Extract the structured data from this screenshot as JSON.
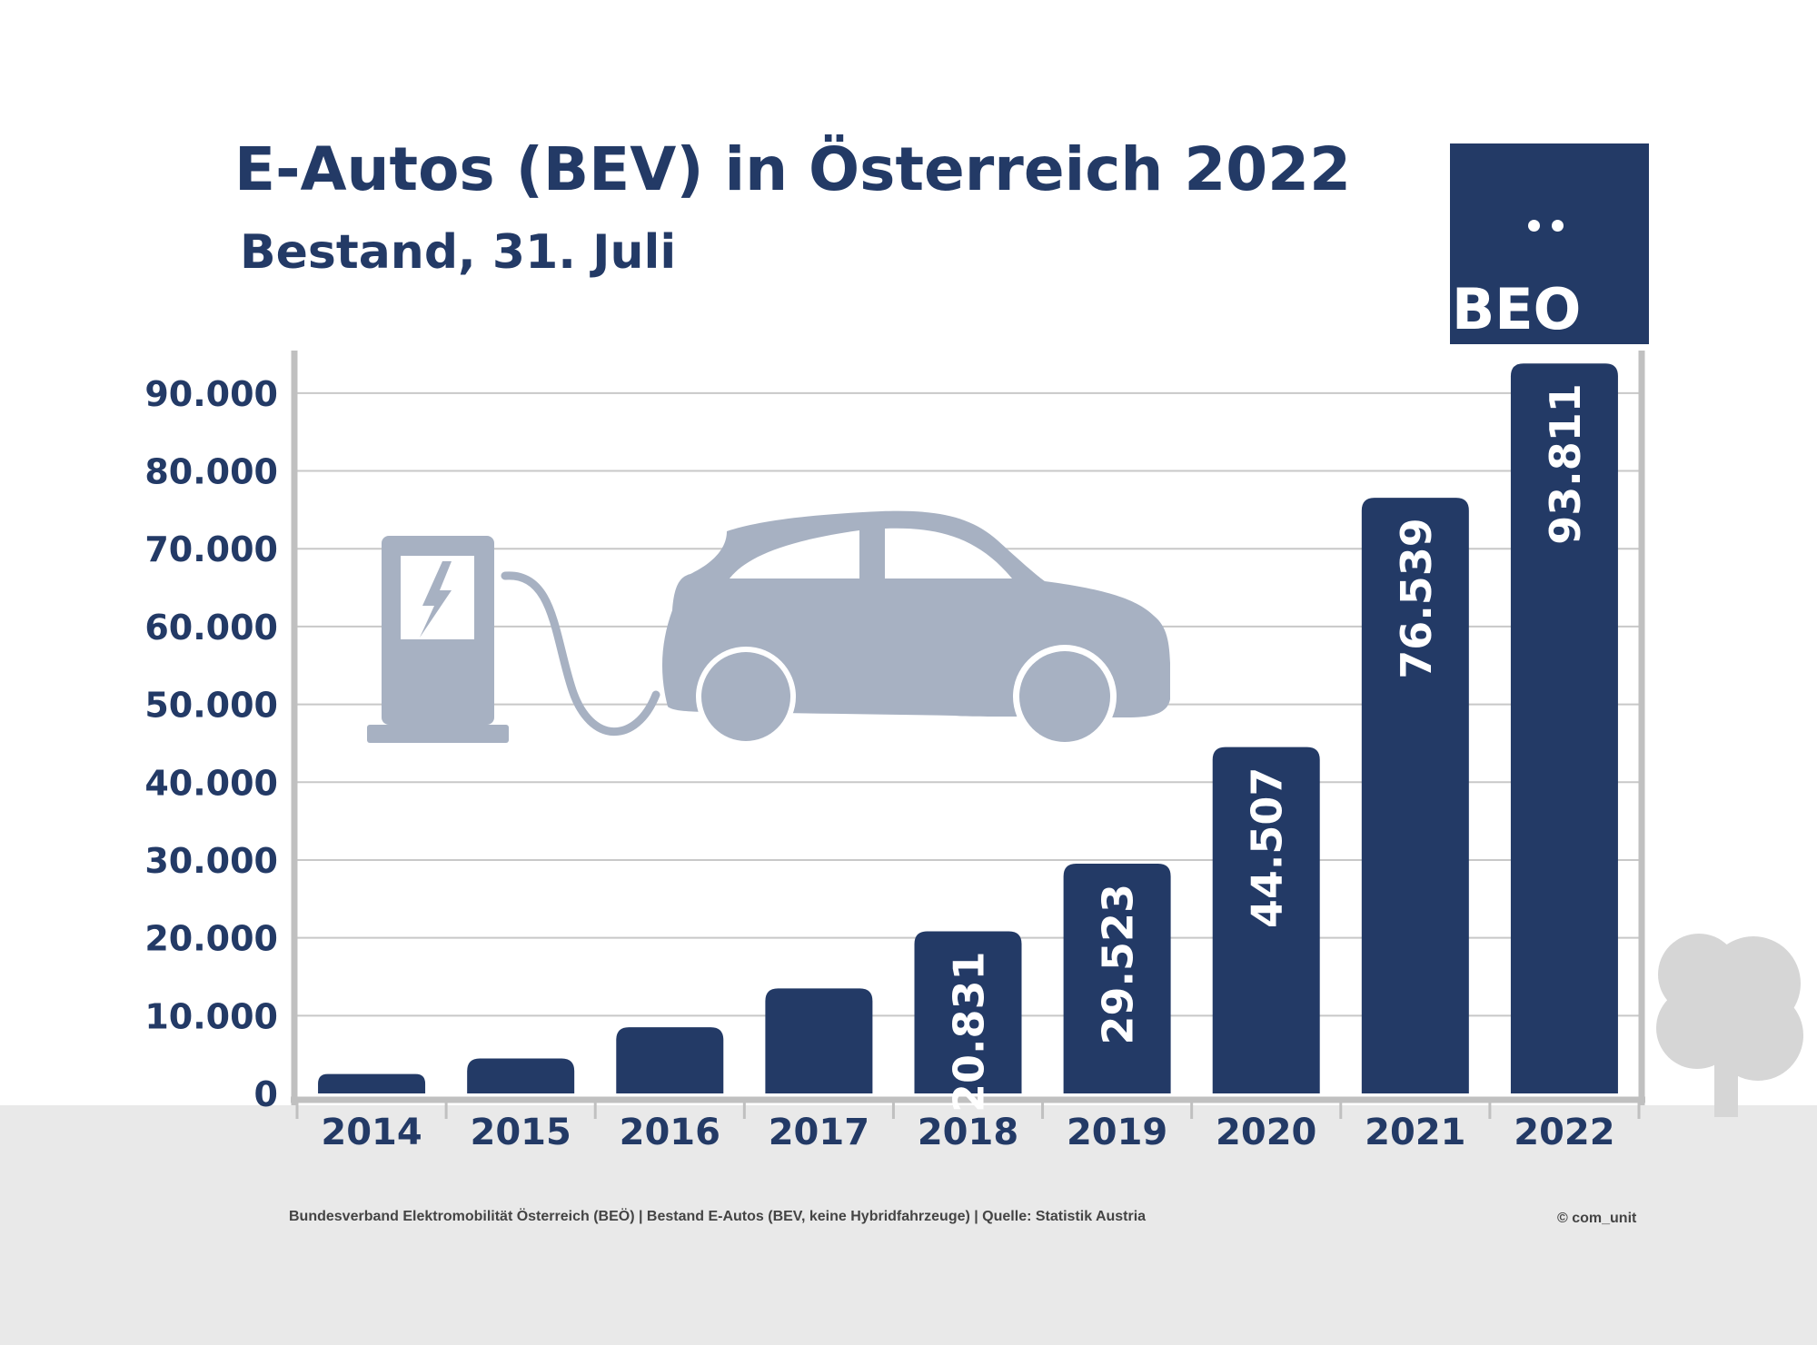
{
  "header": {
    "title": "E-Autos (BEV) in Österreich 2022",
    "subtitle": "Bestand, 31. Juli"
  },
  "logo": {
    "text": "BEO",
    "has_umlaut_dots": true
  },
  "colors": {
    "bar": "#233a66",
    "axis_text": "#233a66",
    "gridline": "#c8c8c8",
    "axis": "#c0c0c0",
    "illustration": "#a7b1c2",
    "tree": "#d6d6d6",
    "ground": "#e9e9e9"
  },
  "icons": [
    "charging-station-icon",
    "lightning-icon",
    "electric-car-icon",
    "tree-icon"
  ],
  "chart_data": {
    "type": "bar",
    "categories": [
      "2014",
      "2015",
      "2016",
      "2017",
      "2018",
      "2019",
      "2020",
      "2021",
      "2022"
    ],
    "values": [
      2500,
      4500,
      8500,
      13500,
      20831,
      29523,
      44507,
      76539,
      93811
    ],
    "data_labels": [
      "",
      "",
      "",
      "",
      "20.831",
      "29.523",
      "44.507",
      "76.539",
      "93.811"
    ],
    "ylim": [
      0,
      95000
    ],
    "yticks": [
      0,
      10000,
      20000,
      30000,
      40000,
      50000,
      60000,
      70000,
      80000,
      90000
    ],
    "ytick_labels": [
      "0",
      "10.000",
      "20.000",
      "30.000",
      "40.000",
      "50.000",
      "60.000",
      "70.000",
      "80.000",
      "90.000"
    ],
    "grid": true,
    "legend": "none",
    "xlabel": "",
    "ylabel": ""
  },
  "footer": {
    "source": "Bundesverband Elektromobilität Österreich (BEÖ) | Bestand E-Autos (BEV, keine Hybridfahrzeuge) | Quelle: Statistik Austria",
    "copyright": "© com_unit"
  }
}
